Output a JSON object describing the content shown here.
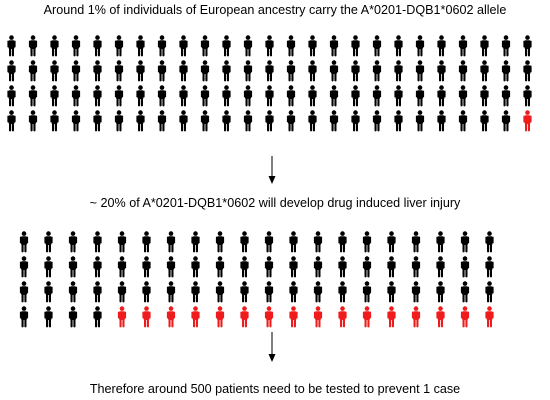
{
  "captions": {
    "top": "Around 1% of individuals of European ancestry carry the A*0201-DQB1*0602 allele",
    "middle": "~ 20% of A*0201-DQB1*0602 will develop drug induced liver injury",
    "bottom": "Therefore around 500 patients need to be tested to prevent 1 case"
  },
  "colors": {
    "unaffected": "#000000",
    "highlighted": "#ee1c1c",
    "arrow": "#000000"
  },
  "grids": {
    "top": {
      "rows": 4,
      "columns": 25,
      "highlighted_count": 1,
      "highlighted_row": 4,
      "highlighted_side": "right"
    },
    "bottom": {
      "rows": 4,
      "columns": 20,
      "highlighted_count": 16,
      "highlighted_row": 4,
      "highlighted_side": "right"
    }
  },
  "icons": {
    "person": "person-icon",
    "arrow": "down-arrow-icon"
  }
}
